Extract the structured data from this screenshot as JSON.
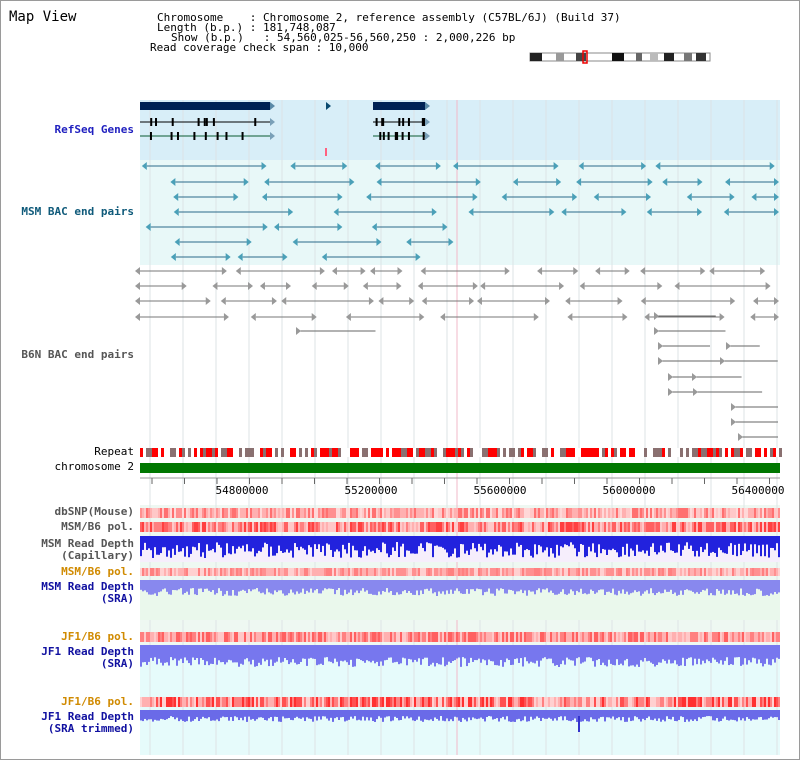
{
  "title": "Map View",
  "info": {
    "line1": "Chromosome    : Chromosome 2, reference assembly (C57BL/6J) (Build 37)",
    "line2": "Length (b.p.) : 181,748,087",
    "line3": "Show (b.p.)   : 54,560,025-56,560,250 : 2,000,226 bp",
    "line4": "Read coverage check span : 10,000"
  },
  "tracks": {
    "refseq": "RefSeq Genes",
    "msm_bac": "MSM BAC end pairs",
    "b6n_bac": "B6N BAC end pairs",
    "repeat": "Repeat",
    "chromosome": "chromosome 2",
    "dbsnp": "dbSNP(Mouse)",
    "msm_b6_pol": "MSM/B6 pol.",
    "msm_depth_cap_1": "MSM Read Depth",
    "msm_depth_cap_2": "(Capillary)",
    "msm_b6_pol_2": "MSM/B6 pol.",
    "msm_depth_sra_1": "MSM Read Depth",
    "msm_depth_sra_2": "(SRA)",
    "jf1_b6_pol": "JF1/B6 pol.",
    "jf1_depth_sra_1": "JF1 Read Depth",
    "jf1_depth_sra_2": "(SRA)",
    "jf1_b6_pol_2": "JF1/B6 pol.",
    "jf1_depth_trim_1": "JF1 Read Depth",
    "jf1_depth_trim_2": "(SRA trimmed)"
  },
  "ruler": {
    "ticks": [
      "54800000",
      "55200000",
      "55600000",
      "56000000",
      "56400000"
    ]
  },
  "colors": {
    "gene": "#002255",
    "msm_feature": "#2a6a8a",
    "b6n_feature": "#777777",
    "repeat_red": "#ff0000",
    "chromosome_green": "#007700",
    "depth_blue": "#2222dd",
    "depth_light_blue": "#8888ee",
    "selection_pink": "#ff6080"
  }
}
